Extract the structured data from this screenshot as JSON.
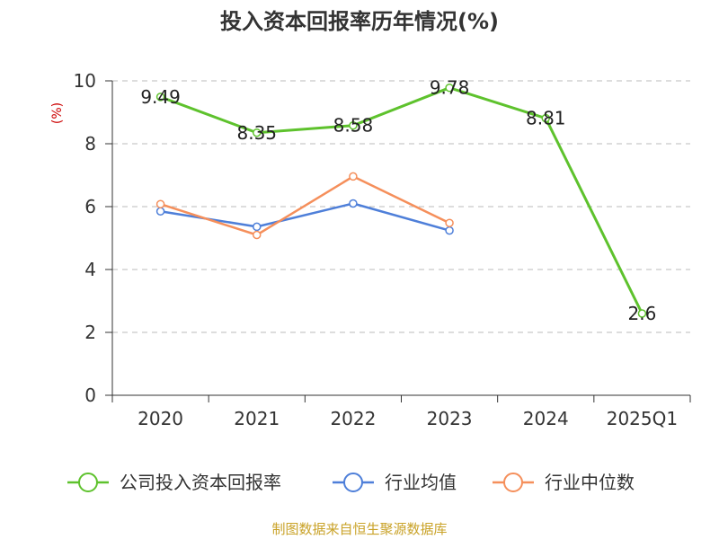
{
  "chart_data": {
    "type": "line",
    "title": "投入资本回报率历年情况(%)",
    "ylabel": "(%)",
    "xlabel": "",
    "categories": [
      "2020",
      "2021",
      "2022",
      "2023",
      "2024",
      "2025Q1"
    ],
    "ylim": [
      0,
      10
    ],
    "yticks": [
      0,
      2,
      4,
      6,
      8,
      10
    ],
    "grid": true,
    "legend_position": "bottom",
    "series": [
      {
        "name": "公司投入资本回报率",
        "values": [
          9.49,
          8.35,
          8.58,
          9.78,
          8.81,
          2.6
        ],
        "color": "#5ec22d",
        "labels": [
          "9.49",
          "8.35",
          "8.58",
          "9.78",
          "8.81",
          "2.6"
        ]
      },
      {
        "name": "行业均值",
        "values": [
          5.85,
          5.36,
          6.1,
          5.24,
          null,
          null
        ],
        "color": "#4e7fd9"
      },
      {
        "name": "行业中位数",
        "values": [
          6.08,
          5.1,
          6.96,
          5.48,
          null,
          null
        ],
        "color": "#f58f5b"
      }
    ]
  },
  "colors": {
    "ylabel": "#cc0000",
    "source": "#c9a227",
    "axis": "#333333",
    "grid": "#bbbbbb"
  },
  "source": "制图数据来自恒生聚源数据库"
}
